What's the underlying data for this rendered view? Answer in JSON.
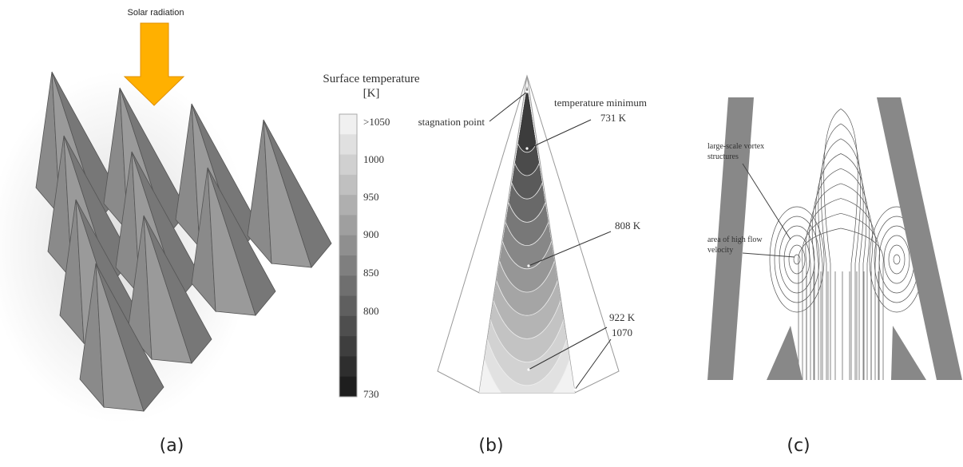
{
  "panel_a": {
    "arrow_label": "Solar radiation",
    "caption": "(a)"
  },
  "panel_b": {
    "legend_title": [
      "Surface temperature",
      "[K]"
    ],
    "legend_labels": [
      ">1050",
      "1000",
      "950",
      "900",
      "850",
      "800",
      "730"
    ],
    "annotations": {
      "stagnation": "stagnation point",
      "minimum": "temperature minimum",
      "t731": "731 K",
      "t808": "808 K",
      "t922": "922 K",
      "t1070": "1070"
    },
    "caption": "(b)"
  },
  "panel_c": {
    "vortex": [
      "large-scale vortex",
      "structures"
    ],
    "velocity": [
      "area of high flow",
      "velocity"
    ],
    "caption": "(c)"
  }
}
